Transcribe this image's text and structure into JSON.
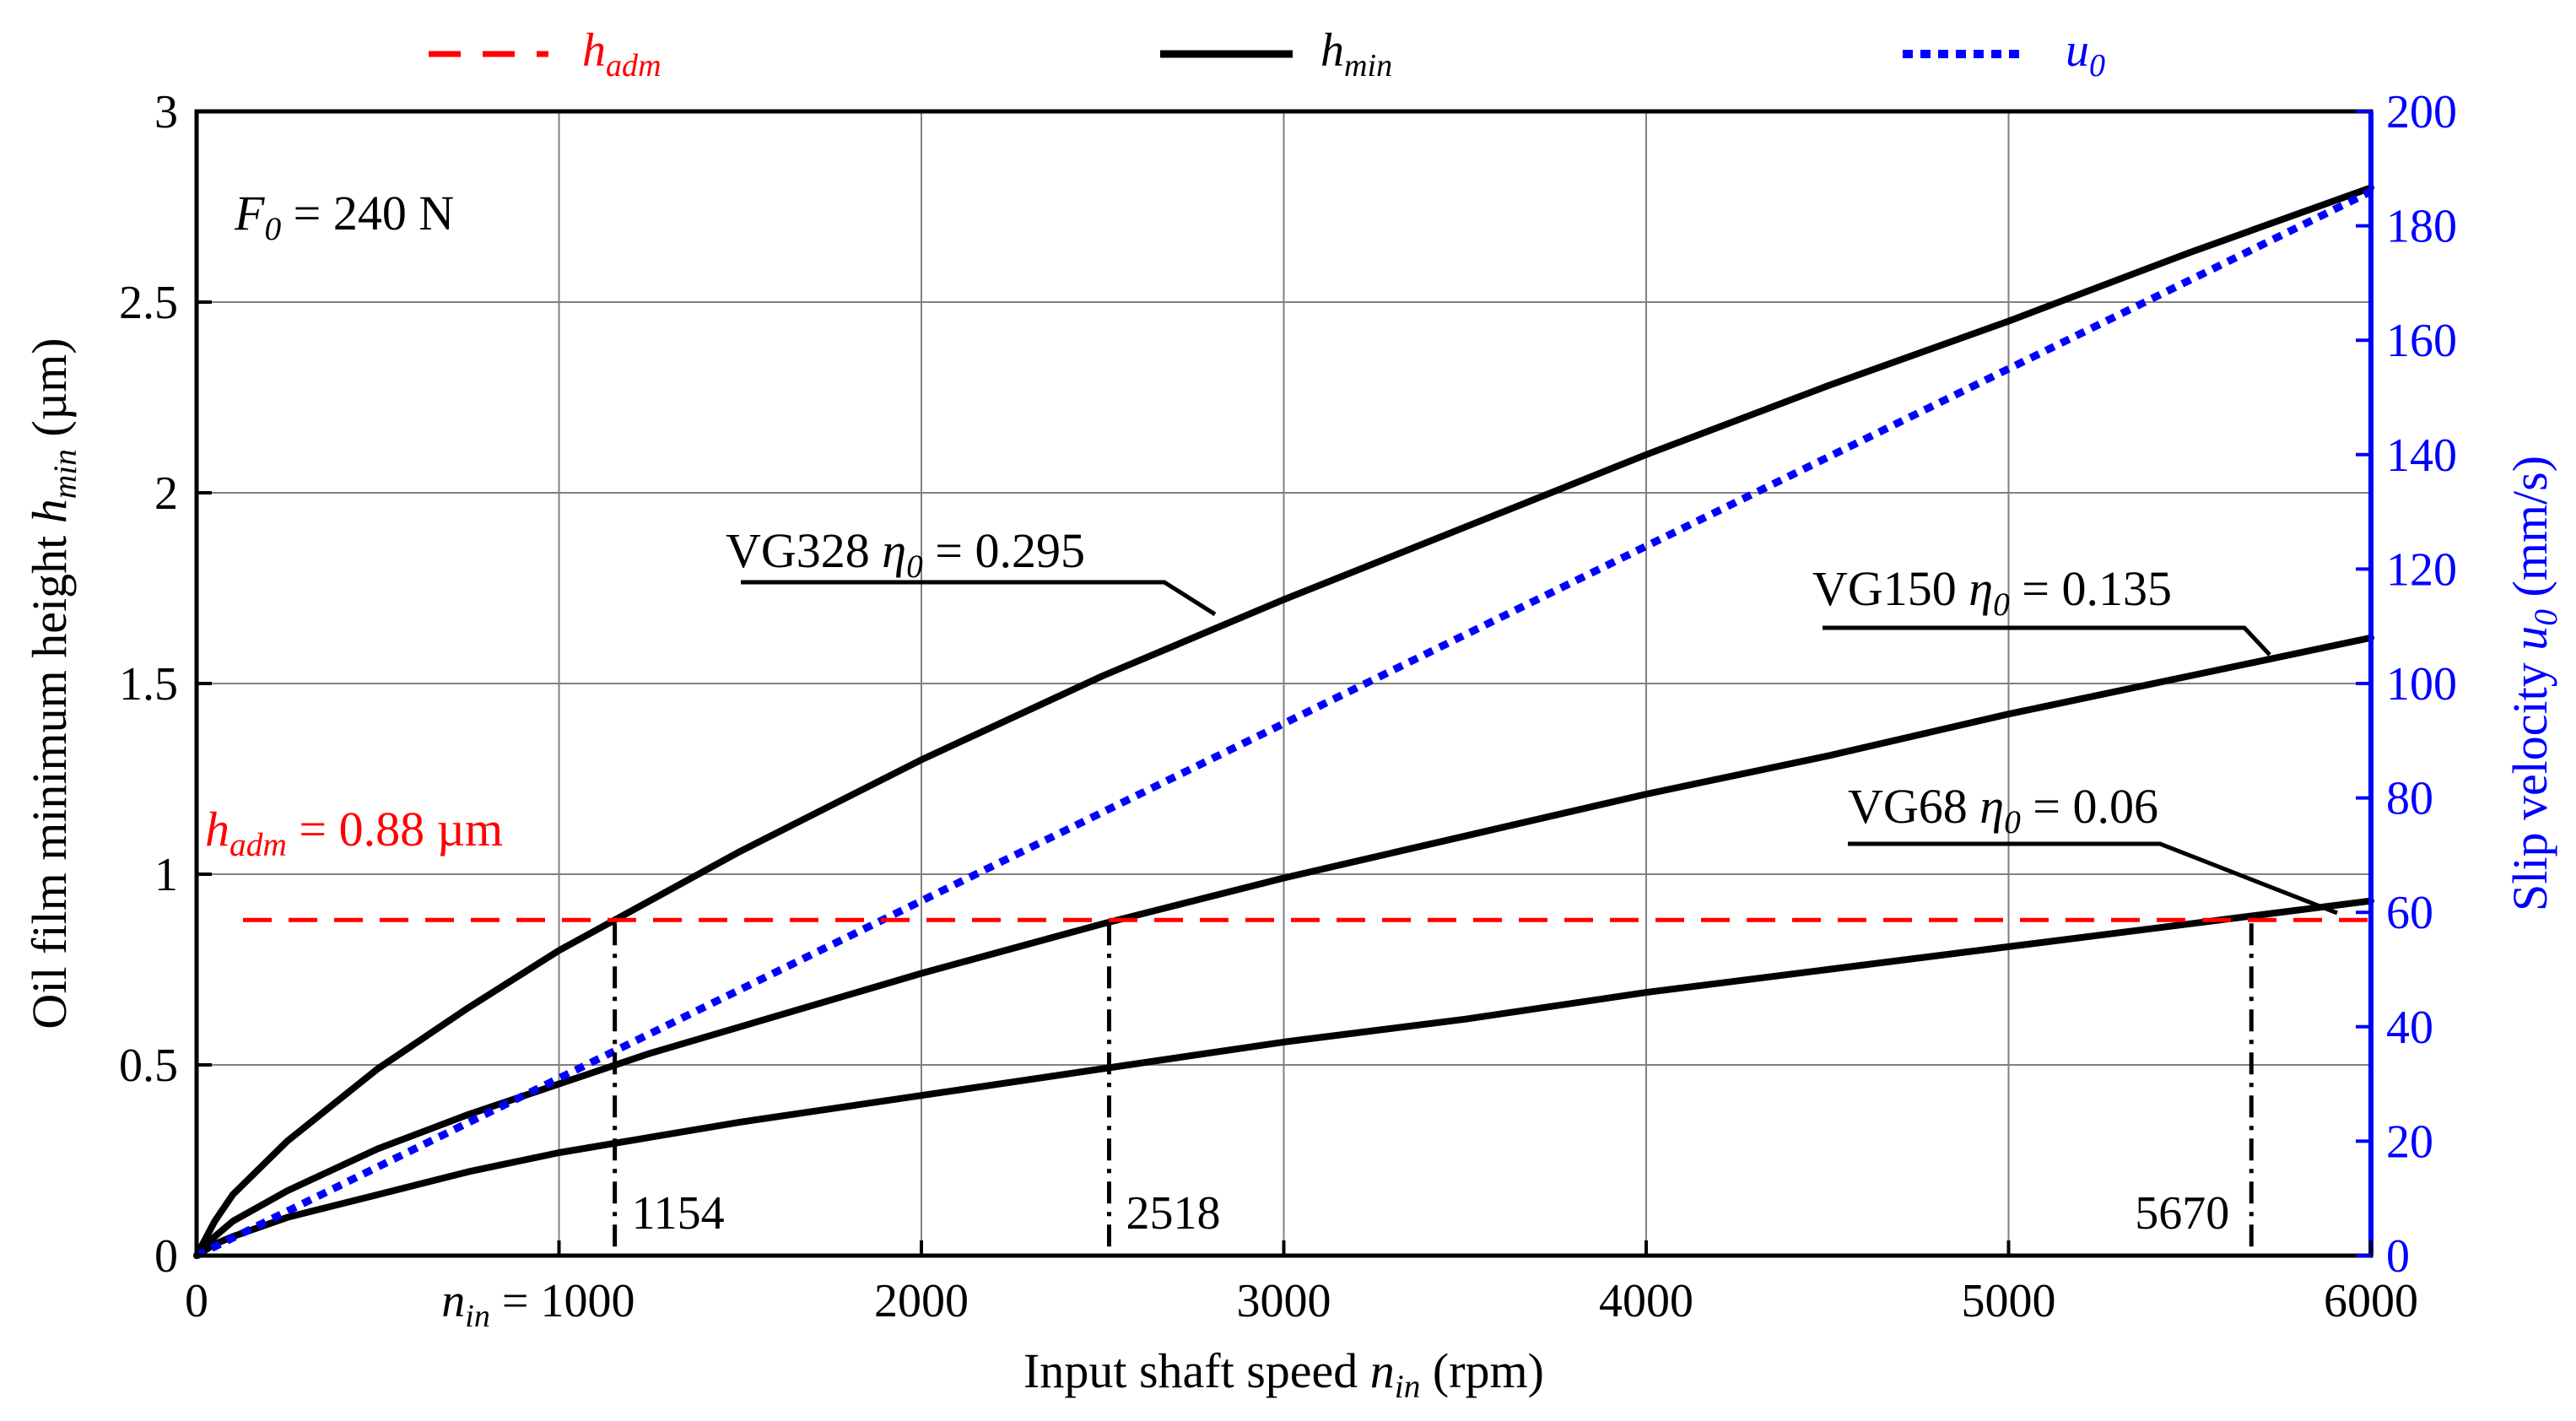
{
  "chart_data": {
    "type": "line",
    "title": "",
    "xlabel": {
      "prefix": "Input shaft speed ",
      "var": "n",
      "sub": "in",
      "suffix": " (rpm)"
    },
    "ylabel_left": {
      "prefix": "Oil film minimum height ",
      "var": "h",
      "sub": "min",
      "suffix": " (µm)"
    },
    "ylabel_right": {
      "prefix": "Slip velocity ",
      "var": "u",
      "sub": "0",
      "suffix": " (mm/s)"
    },
    "xlim": [
      0,
      6000
    ],
    "ylim_left": [
      0,
      3
    ],
    "ylim_right": [
      0,
      200
    ],
    "x_ticks": [
      "0",
      "1000",
      "2000",
      "3000",
      "4000",
      "5000",
      "6000"
    ],
    "x_tick_values": [
      0,
      1000,
      2000,
      3000,
      4000,
      5000,
      6000
    ],
    "y_ticks_left": [
      "0",
      "0.5",
      "1",
      "1.5",
      "2",
      "2.5",
      "3"
    ],
    "y_tick_values_left": [
      0,
      0.5,
      1,
      1.5,
      2,
      2.5,
      3
    ],
    "y_ticks_right": [
      "0",
      "20",
      "40",
      "60",
      "80",
      "100",
      "120",
      "140",
      "160",
      "180",
      "200"
    ],
    "y_tick_values_right": [
      0,
      20,
      40,
      60,
      80,
      100,
      120,
      140,
      160,
      180,
      200
    ],
    "x_tick_1000_prefix": {
      "var": "n",
      "sub": "in",
      "text": " = 1000"
    },
    "grid": true,
    "legend": {
      "placement": "top",
      "entries": [
        {
          "var": "h",
          "sub": "adm",
          "style": "dashed",
          "color": "#ff0000"
        },
        {
          "var": "h",
          "sub": "min",
          "style": "solid",
          "color": "#000000"
        },
        {
          "var": "u",
          "sub": "0",
          "style": "dotted",
          "color": "#0000ff"
        }
      ]
    },
    "series": [
      {
        "name": "VG328",
        "label": {
          "prefix": "VG328 ",
          "eta": "η",
          "sub": "0",
          "suffix": " = 0.295"
        },
        "axis": "left",
        "color": "#000000",
        "style": "solid",
        "x": [
          0,
          50,
          100,
          250,
          500,
          750,
          1000,
          1250,
          1500,
          2000,
          2500,
          3000,
          3500,
          4000,
          4500,
          5000,
          5500,
          6000
        ],
        "y": [
          0,
          0.09,
          0.16,
          0.3,
          0.49,
          0.65,
          0.8,
          0.93,
          1.06,
          1.3,
          1.52,
          1.72,
          1.91,
          2.1,
          2.28,
          2.45,
          2.63,
          2.8
        ]
      },
      {
        "name": "VG150",
        "label": {
          "prefix": "VG150 ",
          "eta": "η",
          "sub": "0",
          "suffix": " = 0.135"
        },
        "axis": "left",
        "color": "#000000",
        "style": "solid",
        "x": [
          0,
          50,
          100,
          250,
          500,
          750,
          1000,
          1250,
          1500,
          2000,
          2500,
          3000,
          3500,
          4000,
          4500,
          5000,
          5500,
          6000
        ],
        "y": [
          0,
          0.05,
          0.09,
          0.17,
          0.28,
          0.37,
          0.45,
          0.53,
          0.6,
          0.74,
          0.87,
          0.99,
          1.1,
          1.21,
          1.31,
          1.42,
          1.52,
          1.62
        ]
      },
      {
        "name": "VG68",
        "label": {
          "prefix": "VG68 ",
          "eta": "η",
          "sub": "0",
          "suffix": " = 0.06"
        },
        "axis": "left",
        "color": "#000000",
        "style": "solid",
        "x": [
          0,
          50,
          100,
          250,
          500,
          750,
          1000,
          1500,
          2000,
          2500,
          3000,
          3500,
          4000,
          4500,
          5000,
          5500,
          6000
        ],
        "y": [
          0,
          0.03,
          0.05,
          0.1,
          0.16,
          0.22,
          0.27,
          0.35,
          0.42,
          0.49,
          0.56,
          0.62,
          0.69,
          0.75,
          0.81,
          0.87,
          0.93
        ]
      },
      {
        "name": "u0",
        "axis": "right",
        "color": "#0000ff",
        "style": "dotted",
        "x": [
          0,
          6000
        ],
        "y": [
          0,
          186
        ]
      }
    ],
    "h_adm": {
      "value": 0.88,
      "color": "#ff0000",
      "style": "dashed",
      "label": {
        "var": "h",
        "sub": "adm",
        "text": " = 0.88 µm"
      }
    },
    "load_annotation": {
      "var": "F",
      "sub": "0",
      "text": " = 240 N",
      "color": "#ff0000"
    },
    "intersections": [
      {
        "x": 1154,
        "label": "1154"
      },
      {
        "x": 2518,
        "label": "2518"
      },
      {
        "x": 5670,
        "label": "5670"
      }
    ]
  }
}
